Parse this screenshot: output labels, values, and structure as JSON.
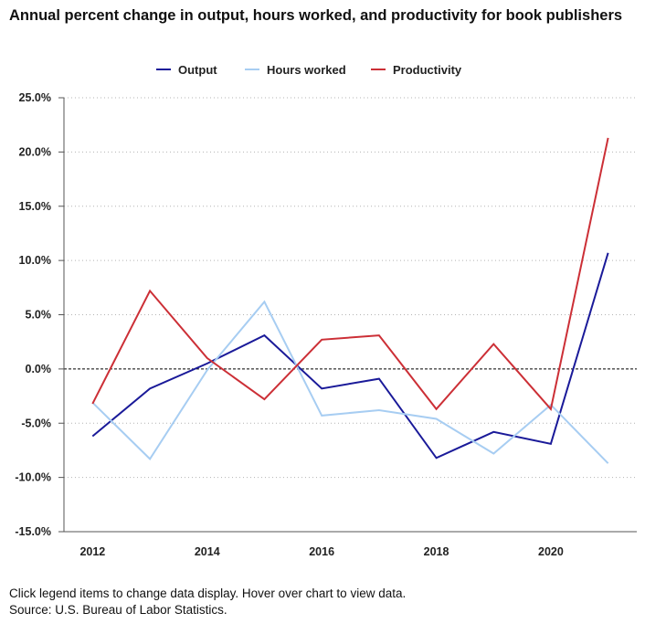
{
  "title": "Annual percent change in output, hours worked, and productivity for book publishers",
  "legend": {
    "items": [
      {
        "label": "Output",
        "color": "#1a1a99"
      },
      {
        "label": "Hours worked",
        "color": "#a7cdf2"
      },
      {
        "label": "Productivity",
        "color": "#cc2f36"
      }
    ]
  },
  "notes": {
    "line1": "Click legend items to change data display. Hover over chart to view data.",
    "line2": "Source: U.S. Bureau of Labor Statistics."
  },
  "chart_data": {
    "type": "line",
    "title": "Annual percent change in output, hours worked, and productivity for book publishers",
    "xlabel": "",
    "ylabel": "",
    "x": [
      2012,
      2013,
      2014,
      2015,
      2016,
      2017,
      2018,
      2019,
      2020,
      2021
    ],
    "x_ticks": [
      "2012",
      "2014",
      "2016",
      "2018",
      "2020"
    ],
    "y_ticks": [
      "25.0%",
      "20.0%",
      "15.0%",
      "10.0%",
      "5.0%",
      "0.0%",
      "-5.0%",
      "-10.0%",
      "-15.0%"
    ],
    "ylim": [
      -15,
      25
    ],
    "xlim": [
      2011.5,
      2021.5
    ],
    "grid": "horizontal dotted",
    "legend_position": "top",
    "series": [
      {
        "name": "Output",
        "color": "#1a1a99",
        "values": [
          -6.2,
          -1.8,
          0.5,
          3.1,
          -1.8,
          -0.9,
          -8.2,
          -5.8,
          -6.9,
          10.7
        ]
      },
      {
        "name": "Hours worked",
        "color": "#a7cdf2",
        "values": [
          -3.1,
          -8.3,
          -0.1,
          6.2,
          -4.3,
          -3.8,
          -4.6,
          -7.8,
          -3.3,
          -8.7
        ]
      },
      {
        "name": "Productivity",
        "color": "#cc2f36",
        "values": [
          -3.2,
          7.2,
          1.0,
          -2.8,
          2.7,
          3.1,
          -3.7,
          2.3,
          -3.7,
          21.3
        ]
      }
    ]
  }
}
